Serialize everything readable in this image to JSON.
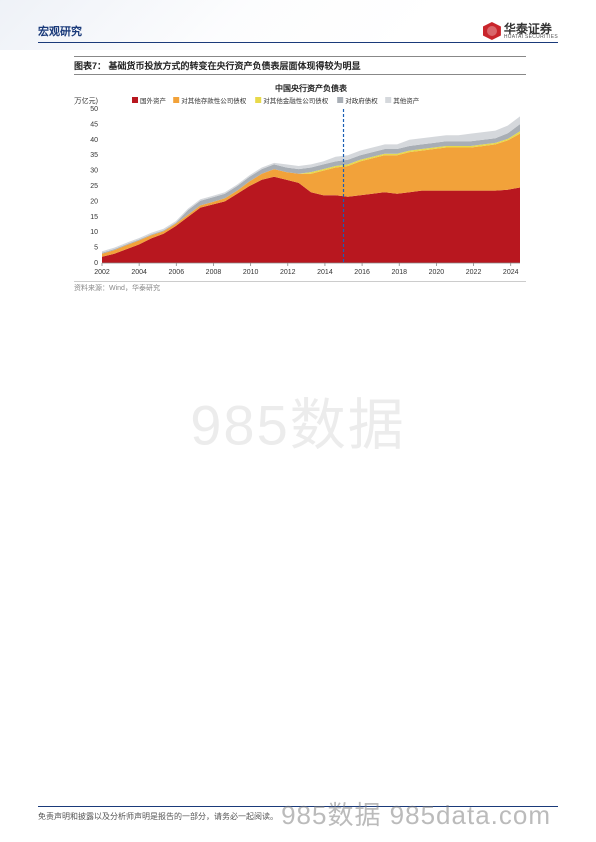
{
  "header": {
    "title": "宏观研究",
    "logo_cn": "华泰证券",
    "logo_en": "HUATAI SECURITIES"
  },
  "chart": {
    "type": "stacked-area",
    "caption": "图表7：  基础货币投放方式的转变在央行资产负债表层面体现得较为明显",
    "title": "中国央行资产负债表",
    "ylabel": "(万亿元)",
    "source": "资料来源：Wind，华泰研究",
    "x_ticks": [
      "2002",
      "2004",
      "2006",
      "2008",
      "2010",
      "2012",
      "2014",
      "2016",
      "2018",
      "2020",
      "2022",
      "2024"
    ],
    "ylim": [
      0,
      50
    ],
    "y_ticks": [
      0,
      5,
      10,
      15,
      20,
      25,
      30,
      35,
      40,
      45,
      50
    ],
    "vline_x": 2015,
    "vline_color": "#1a5fb4",
    "title_fontsize": 8,
    "label_fontsize": 7,
    "tick_fontsize": 7,
    "background_color": "#ffffff",
    "series": [
      {
        "name": "国外资产",
        "legend": "■国外资产",
        "color": "#b8171f",
        "data": [
          2,
          3,
          4.5,
          6,
          8,
          9.5,
          12,
          15,
          18,
          19,
          20,
          22.5,
          25,
          27,
          28,
          27,
          26,
          23,
          22,
          22,
          21.5,
          22,
          22.5,
          23,
          22.5,
          23,
          23.5,
          23.5,
          23.5,
          23.5,
          23.5,
          23.5,
          23.5,
          23.8,
          24.5
        ]
      },
      {
        "name": "对其他存款性公司债权",
        "legend": "■对其他存款性公司债权",
        "color": "#f2a23a",
        "data": [
          1,
          1.2,
          1.3,
          1.3,
          1,
          0.8,
          0.8,
          0.7,
          0.7,
          0.8,
          1,
          1,
          1.5,
          2,
          2.5,
          2.5,
          3,
          6,
          8,
          9,
          10,
          11,
          11.5,
          12,
          12.5,
          13,
          13,
          13.5,
          14,
          14,
          14,
          14.5,
          15,
          16,
          17.5
        ]
      },
      {
        "name": "对其他金融性公司债权",
        "legend": "■对其他金融性公司债权",
        "color": "#e8d94a",
        "data": [
          0,
          0,
          0,
          0,
          0,
          0,
          0,
          0,
          0,
          0,
          0,
          0,
          0,
          0,
          0,
          0,
          0,
          0.5,
          0.5,
          0.5,
          0.5,
          0.5,
          0.5,
          0.5,
          0.5,
          0.5,
          0.5,
          0.5,
          0.5,
          0.5,
          0.5,
          0.5,
          0.5,
          0.5,
          0.8
        ]
      },
      {
        "name": "对政府债权",
        "legend": "■对政府债权",
        "color": "#a8aeb5",
        "data": [
          0.3,
          0.3,
          0.3,
          0.3,
          0.3,
          0.3,
          0.3,
          1.5,
          1.5,
          1.5,
          1.5,
          1.5,
          1.5,
          1.5,
          1.5,
          1.5,
          1.5,
          1.5,
          1.5,
          1.5,
          1.5,
          1.5,
          1.5,
          1.5,
          1.5,
          1.5,
          1.5,
          1.5,
          1.5,
          1.5,
          1.5,
          1.5,
          1.5,
          1.8,
          2.3
        ]
      },
      {
        "name": "其他资产",
        "legend": "■其他资产",
        "color": "#d5d8dc",
        "data": [
          0.5,
          0.5,
          0.5,
          0.5,
          0.5,
          0.5,
          0.5,
          0.5,
          0.5,
          0.5,
          0.5,
          0.5,
          0.5,
          0.5,
          0.5,
          1,
          1,
          1,
          1,
          1.5,
          1.5,
          1.5,
          1.5,
          1.5,
          1.5,
          2,
          2,
          2,
          2,
          2,
          2.5,
          2.5,
          2.5,
          2.5,
          2.5
        ]
      }
    ],
    "legend_items": [
      {
        "label": "国外资产",
        "color": "#b8171f"
      },
      {
        "label": "对其他存款性公司债权",
        "color": "#f2a23a"
      },
      {
        "label": "对其他金融性公司债权",
        "color": "#e8d94a"
      },
      {
        "label": "对政府债权",
        "color": "#a8aeb5"
      },
      {
        "label": "其他资产",
        "color": "#d5d8dc"
      }
    ]
  },
  "footer": {
    "disclaimer": "免责声明和披露以及分析师声明是报告的一部分，请务必一起阅读。"
  },
  "watermark": {
    "center": "985数据",
    "bottom": "985数据 985data.com"
  }
}
